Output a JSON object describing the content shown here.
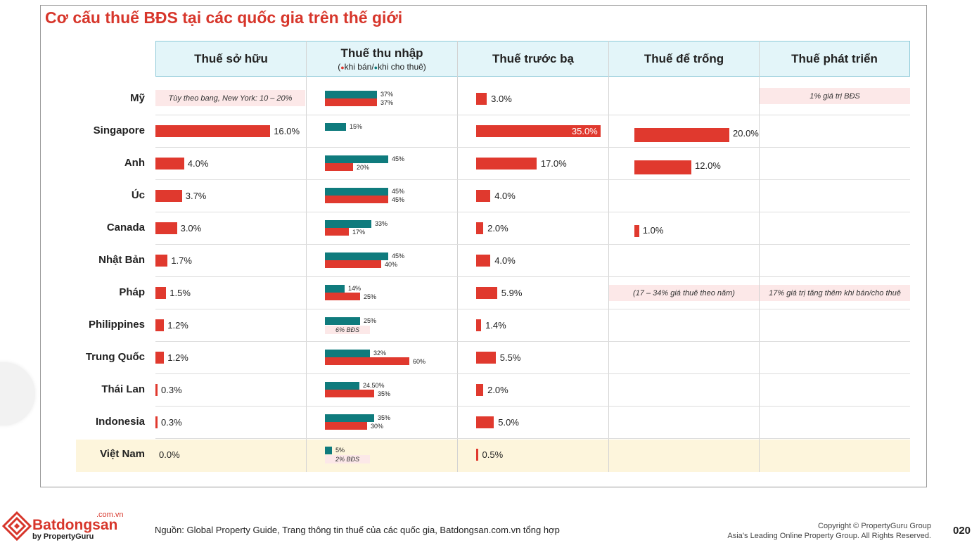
{
  "title": "Cơ cấu thuế BĐS tại các quốc gia trên thế giới",
  "colors": {
    "red": "#e0392e",
    "teal": "#0f7b7d",
    "header_bg": "#e3f5f9",
    "highlight_bg": "#fdf5dc",
    "note_bg": "#fce8e8"
  },
  "headers": {
    "ownership": "Thuế sở hữu",
    "income": "Thuế thu nhập",
    "income_sub_open": "(",
    "income_sub_sell": "khi bán/",
    "income_sub_rent": "khi cho thuê)",
    "registration": "Thuế trước bạ",
    "vacancy": "Thuế để trống",
    "development": "Thuế phát triển"
  },
  "chart_data": {
    "type": "bar",
    "title": "Cơ cấu thuế BĐS tại các quốc gia trên thế giới",
    "categories": [
      "Mỹ",
      "Singapore",
      "Anh",
      "Úc",
      "Canada",
      "Nhật Bản",
      "Pháp",
      "Philippines",
      "Trung Quốc",
      "Thái Lan",
      "Indonesia",
      "Việt Nam"
    ],
    "ownership": {
      "values": [
        null,
        16.0,
        4.0,
        3.7,
        3.0,
        1.7,
        1.5,
        1.2,
        1.2,
        0.3,
        0.3,
        0.0
      ],
      "labels": [
        null,
        "16.0%",
        "4.0%",
        "3.7%",
        "3.0%",
        "1.7%",
        "1.5%",
        "1.2%",
        "1.2%",
        "0.3%",
        "0.3%",
        "0.0%"
      ],
      "note_us": "Tùy theo bang, New York: 10 – 20%"
    },
    "income": {
      "rent_values": [
        37,
        15,
        45,
        45,
        33,
        45,
        14,
        25,
        32,
        24.5,
        35,
        5
      ],
      "rent_labels": [
        "37%",
        "15%",
        "45%",
        "45%",
        "33%",
        "45%",
        "14%",
        "25%",
        "32%",
        "24.50%",
        "35%",
        "5%"
      ],
      "sell_values": [
        37,
        null,
        20,
        45,
        17,
        40,
        25,
        null,
        60,
        35,
        30,
        null
      ],
      "sell_labels": [
        "37%",
        null,
        "20%",
        "45%",
        "17%",
        "40%",
        "25%",
        null,
        "60%",
        "35%",
        "30%",
        null
      ],
      "note_philippines": "6% BĐS",
      "note_vietnam": "2% BĐS"
    },
    "registration": {
      "values": [
        3.0,
        35.0,
        17.0,
        4.0,
        2.0,
        4.0,
        5.9,
        1.4,
        5.5,
        2.0,
        5.0,
        0.5
      ],
      "labels": [
        "3.0%",
        "35.0%",
        "17.0%",
        "4.0%",
        "2.0%",
        "4.0%",
        "5.9%",
        "1.4%",
        "5.5%",
        "2.0%",
        "5.0%",
        "0.5%"
      ]
    },
    "vacancy": {
      "values": [
        null,
        20.0,
        12.0,
        null,
        1.0,
        null,
        null,
        null,
        null,
        null,
        null,
        null
      ],
      "labels": [
        null,
        "20.0%",
        "12.0%",
        null,
        "1.0%",
        null,
        null,
        null,
        null,
        null,
        null,
        null
      ],
      "note_france": "(17 – 34% giá thuê theo năm)"
    },
    "development": {
      "note_us": "1% giá trị BĐS",
      "note_france": "17% giá trị tăng thêm khi bán/cho thuê"
    },
    "legend": [
      {
        "name": "khi bán",
        "color": "#e0392e"
      },
      {
        "name": "khi cho thuê",
        "color": "#0f7b7d"
      }
    ]
  },
  "footer": {
    "logo_name": "Batdongsan",
    "logo_domain": ".com.vn",
    "logo_by": "by PropertyGuru",
    "source": "Nguồn: Global Property Guide, Trang thông tin thuế của các quốc gia, Batdongsan.com.vn tổng hợp",
    "copyright_line1": "Copyright © PropertyGuru Group",
    "copyright_line2": "Asia’s Leading Online Property Group. All Rights Reserved.",
    "page_number": "020"
  }
}
